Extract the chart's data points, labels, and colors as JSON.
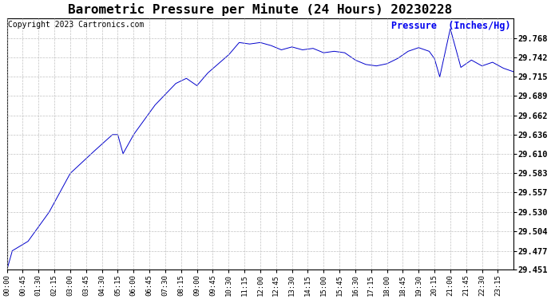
{
  "title": "Barometric Pressure per Minute (24 Hours) 20230228",
  "ylabel": "Pressure  (Inches/Hg)",
  "copyright_text": "Copyright 2023 Cartronics.com",
  "line_color": "#0000cc",
  "ylabel_color": "#0000ee",
  "copyright_color": "#000000",
  "bg_color": "#ffffff",
  "plot_bg_color": "#ffffff",
  "grid_color": "#bbbbbb",
  "grid_style": "--",
  "ylim_min": 29.451,
  "ylim_max": 29.7954,
  "yticks": [
    29.451,
    29.477,
    29.504,
    29.53,
    29.557,
    29.583,
    29.61,
    29.636,
    29.662,
    29.689,
    29.715,
    29.742,
    29.768
  ],
  "xtick_interval_minutes": 45,
  "total_minutes": 1440,
  "title_fontsize": 11.5,
  "ylabel_fontsize": 8.5,
  "copyright_fontsize": 7,
  "ytick_fontsize": 7.5,
  "xtick_fontsize": 6.5
}
